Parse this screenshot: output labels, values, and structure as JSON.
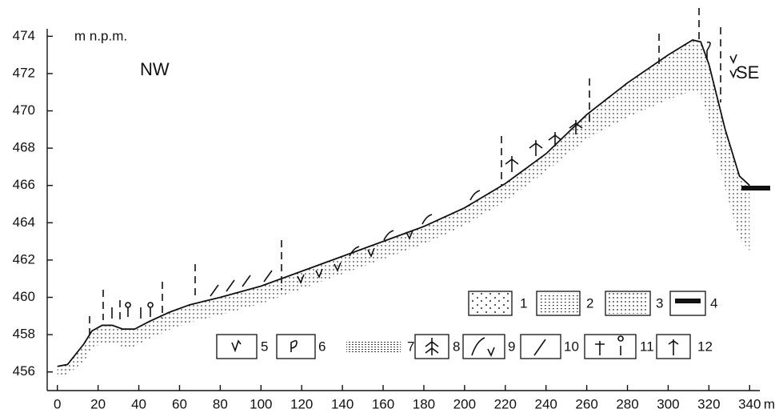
{
  "chart_data": {
    "type": "line",
    "y_label": "m n.p.m.",
    "x_unit": "m",
    "left_label": "NW",
    "right_label": "SE",
    "x": [
      0,
      5,
      13,
      17,
      22,
      27,
      32,
      38,
      45,
      55,
      65,
      80,
      100,
      120,
      140,
      160,
      180,
      200,
      220,
      240,
      260,
      280,
      300,
      312,
      316,
      320,
      328,
      335,
      340
    ],
    "series": [
      {
        "color": "#111111",
        "values": [
          456.3,
          456.4,
          457.5,
          458.2,
          458.5,
          458.5,
          458.3,
          458.3,
          458.7,
          459.2,
          459.6,
          460.0,
          460.6,
          461.4,
          462.2,
          463.0,
          463.8,
          464.8,
          466.1,
          467.7,
          469.8,
          471.5,
          473.0,
          473.8,
          473.7,
          472.5,
          469.0,
          466.5,
          466.0
        ]
      }
    ],
    "xlim": [
      -5,
      345
    ],
    "ylim": [
      455,
      474.4
    ],
    "xticks": [
      0,
      20,
      40,
      60,
      80,
      100,
      120,
      140,
      160,
      180,
      200,
      220,
      240,
      260,
      280,
      300,
      320,
      340
    ],
    "yticks": [
      456,
      458,
      460,
      462,
      464,
      466,
      468,
      470,
      472,
      474
    ],
    "legend": [
      "1",
      "2",
      "3",
      "4",
      "5",
      "6",
      "7",
      "8",
      "9",
      "10",
      "11",
      "12"
    ]
  }
}
